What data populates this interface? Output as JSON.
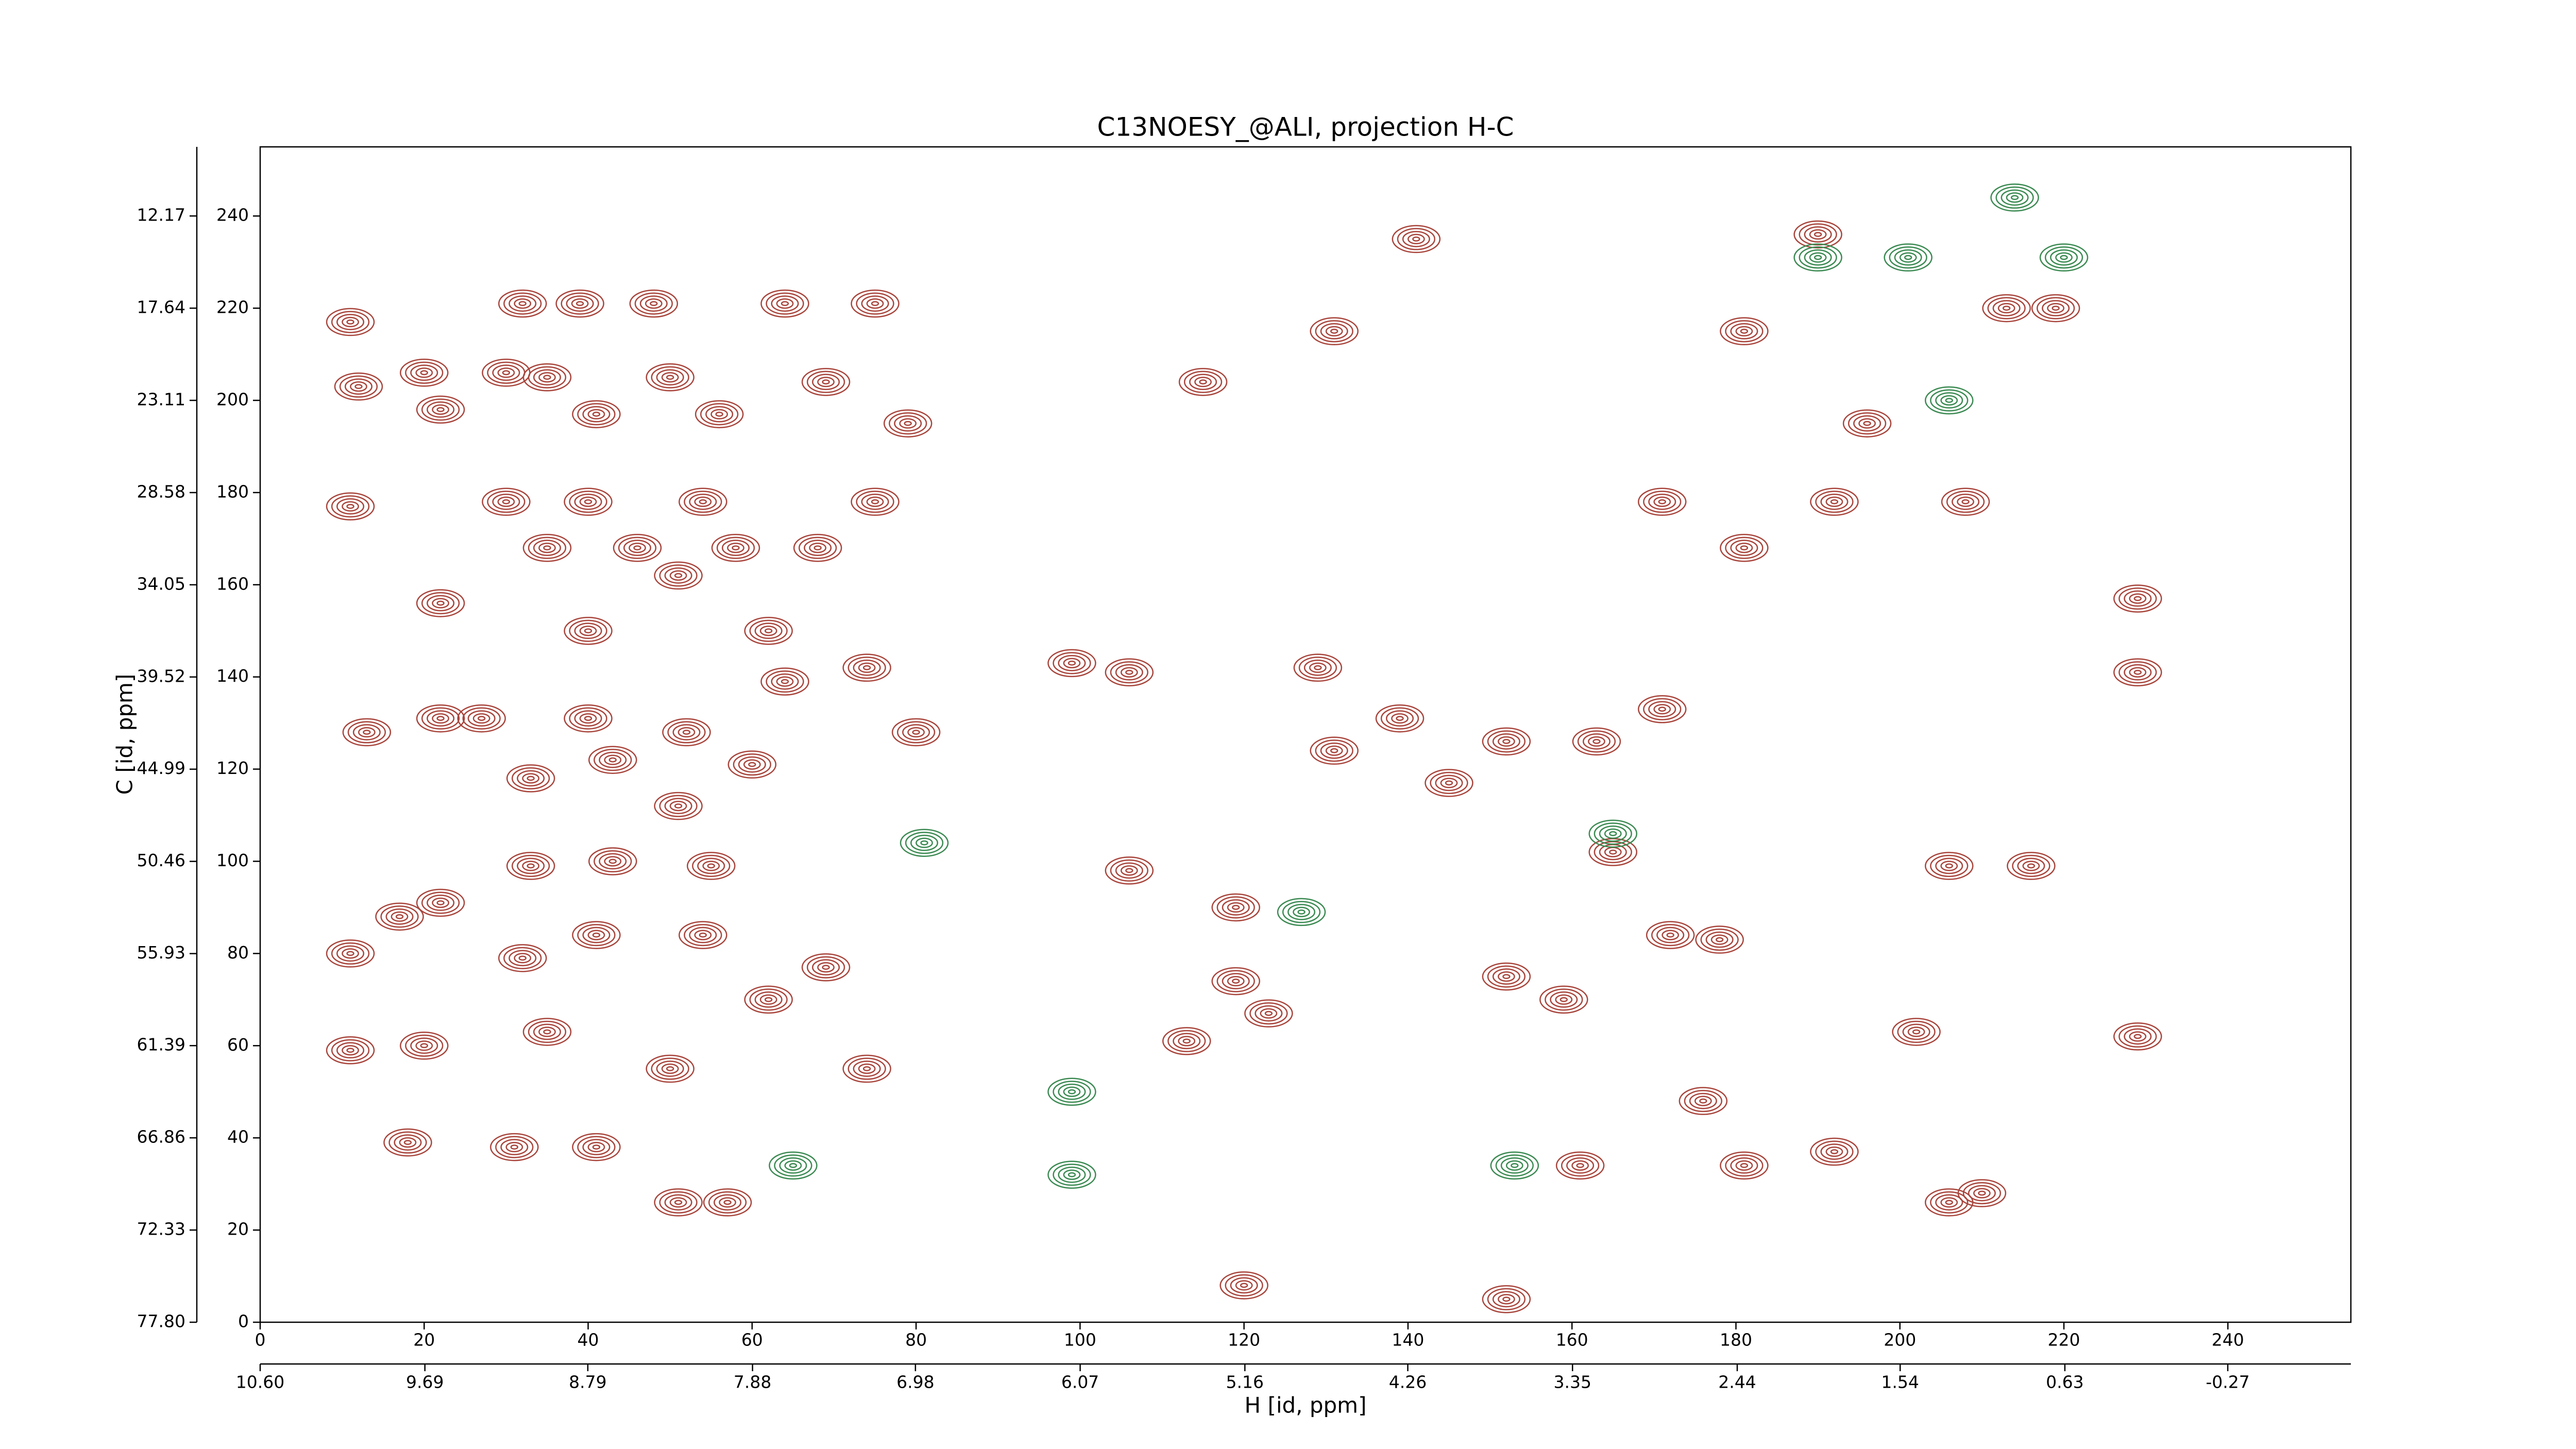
{
  "chart_data": {
    "type": "contour",
    "title": "C13NOESY_@ALI, projection H-C",
    "x_label": "H [id, ppm]",
    "y_label": "C [id, ppm]",
    "xlim": [
      0,
      255
    ],
    "ylim": [
      0,
      255
    ],
    "xticks": [
      0,
      20,
      40,
      60,
      80,
      100,
      120,
      140,
      160,
      180,
      200,
      220,
      240
    ],
    "yticks": [
      0,
      20,
      40,
      60,
      80,
      100,
      120,
      140,
      160,
      180,
      200,
      220,
      240
    ],
    "x2lim": [
      10.6,
      -0.95
    ],
    "x2ticks": [
      {
        "value": 10.6,
        "label": "10.60"
      },
      9.69,
      8.79,
      7.88,
      6.98,
      6.07,
      5.16,
      4.26,
      3.35,
      2.44,
      1.54,
      0.63,
      -0.27
    ],
    "y2lim": [
      77.8,
      8.07
    ],
    "y2ticks": [
      {
        "value": 77.8,
        "label": "77.80"
      },
      72.33,
      66.86,
      61.39,
      55.93,
      50.46,
      44.99,
      39.52,
      34.05,
      28.58,
      23.11,
      17.64,
      12.17
    ],
    "series": [
      {
        "color": "#a8453c",
        "x": [
          11,
          32,
          39,
          48,
          64,
          75,
          12,
          20,
          22,
          30,
          35,
          41,
          50,
          56,
          69,
          79,
          11,
          30,
          40,
          54,
          75,
          22,
          35,
          46,
          58,
          68,
          51,
          40,
          62,
          74,
          13,
          22,
          27,
          40,
          52,
          64,
          80,
          33,
          43,
          60,
          51,
          33,
          43,
          55,
          22,
          17,
          11,
          11,
          20,
          32,
          41,
          54,
          69,
          35,
          50,
          62,
          74,
          18,
          31,
          41,
          51,
          57,
          99,
          106,
          106,
          113,
          119,
          119,
          123,
          120,
          129,
          131,
          139,
          145,
          152,
          152,
          152,
          159,
          163,
          165,
          171,
          171,
          181,
          192,
          208,
          229,
          229,
          229,
          206,
          216,
          206,
          210,
          219,
          213,
          190,
          196,
          181,
          141,
          131,
          115,
          161,
          192,
          202,
          172,
          178,
          181,
          176
        ],
        "y": [
          217,
          221,
          221,
          221,
          221,
          221,
          203,
          206,
          198,
          206,
          205,
          197,
          205,
          197,
          204,
          195,
          177,
          178,
          178,
          178,
          178,
          156,
          168,
          168,
          168,
          168,
          162,
          150,
          150,
          142,
          128,
          131,
          131,
          131,
          128,
          139,
          128,
          118,
          122,
          121,
          112,
          99,
          100,
          99,
          91,
          88,
          80,
          59,
          60,
          79,
          84,
          84,
          77,
          63,
          55,
          70,
          55,
          39,
          38,
          38,
          26,
          26,
          143,
          98,
          141,
          61,
          90,
          74,
          67,
          8,
          142,
          124,
          131,
          117,
          126,
          75,
          5,
          70,
          126,
          102,
          133,
          178,
          168,
          178,
          178,
          157,
          141,
          62,
          99,
          99,
          26,
          28,
          220,
          220,
          236,
          195,
          215,
          235,
          215,
          204,
          34,
          37,
          63,
          84,
          83,
          34,
          48
        ]
      },
      {
        "color": "#3b8a52",
        "x": [
          190,
          201,
          214,
          220,
          165,
          153,
          99,
          99,
          81,
          65,
          127,
          206
        ],
        "y": [
          231,
          231,
          244,
          231,
          106,
          34,
          50,
          32,
          104,
          34,
          89,
          200
        ]
      }
    ]
  }
}
